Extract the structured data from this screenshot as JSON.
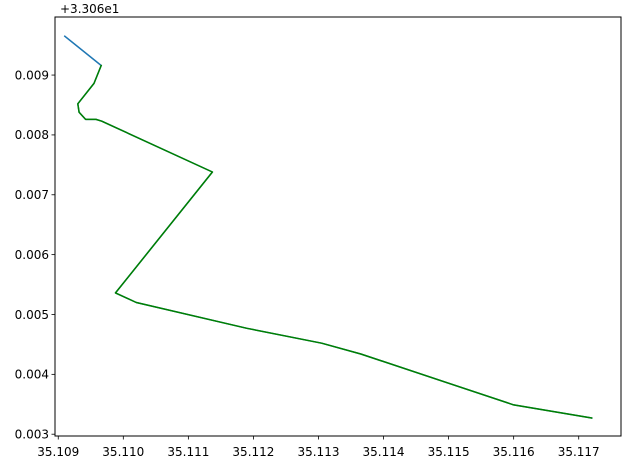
{
  "chart_data": {
    "type": "line",
    "title": "",
    "xlabel": "",
    "ylabel": "",
    "y_offset_label": "+3.306e1",
    "xlim": [
      35.10895,
      35.11765
    ],
    "ylim": [
      0.00297,
      0.00997
    ],
    "x_ticks": [
      35.109,
      35.11,
      35.111,
      35.112,
      35.113,
      35.114,
      35.115,
      35.116,
      35.117
    ],
    "x_tick_labels": [
      "35.109",
      "35.110",
      "35.111",
      "35.112",
      "35.113",
      "35.114",
      "35.115",
      "35.116",
      "35.117"
    ],
    "y_ticks": [
      0.003,
      0.004,
      0.005,
      0.006,
      0.007,
      0.008,
      0.009
    ],
    "y_tick_labels": [
      "0.003",
      "0.004",
      "0.005",
      "0.006",
      "0.007",
      "0.008",
      "0.009"
    ],
    "grid": false,
    "legend": "none",
    "series": [
      {
        "color": "#1f77b4",
        "x": [
          35.1091,
          35.10966,
          35.10955,
          35.1093,
          35.10932,
          35.10942,
          35.10958,
          35.10967,
          35.11137,
          35.10988,
          35.1102,
          35.1119,
          35.11305,
          35.11365,
          35.116,
          35.1172
        ],
        "y": [
          0.00965,
          0.00916,
          0.00886,
          0.00852,
          0.00838,
          0.00826,
          0.00826,
          0.00823,
          0.00738,
          0.00536,
          0.0052,
          0.00477,
          0.00452,
          0.00434,
          0.00349,
          0.00327
        ]
      },
      {
        "color": "#008000",
        "x": [
          35.10966,
          35.10955,
          35.1093,
          35.10932,
          35.10942,
          35.10958,
          35.10967,
          35.11137,
          35.10988,
          35.1102,
          35.1119,
          35.11305,
          35.11365,
          35.116,
          35.1172
        ],
        "y": [
          0.00916,
          0.00886,
          0.00852,
          0.00838,
          0.00826,
          0.00826,
          0.00823,
          0.00738,
          0.00536,
          0.0052,
          0.00477,
          0.00452,
          0.00434,
          0.00349,
          0.00327
        ]
      }
    ]
  }
}
